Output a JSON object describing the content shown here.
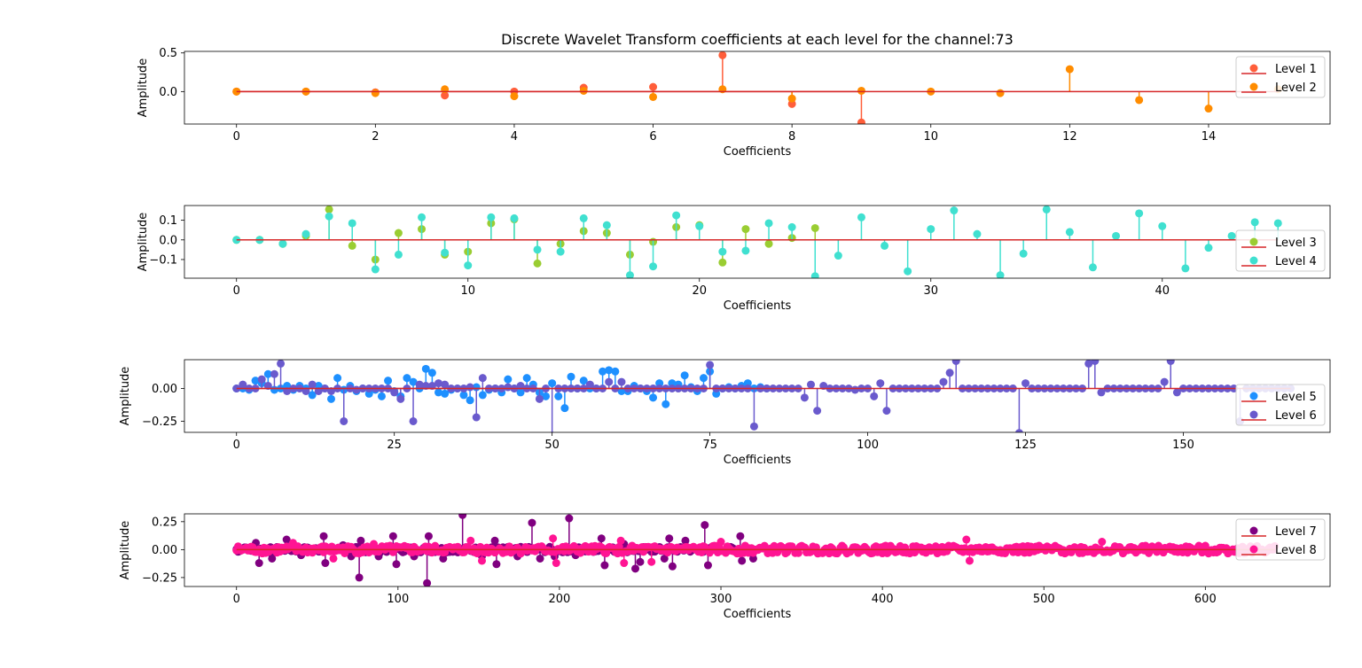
{
  "figure_title": "Discrete Wavelet Transform coefficients at each level for the channel:73",
  "colors": {
    "baseline": "#d62728",
    "level1": "#ff5e3a",
    "level2": "#ff8c00",
    "level3": "#9acd32",
    "level4": "#40e0d0",
    "level5": "#1e90ff",
    "level6": "#6a5acd",
    "level7": "#800080",
    "level8": "#ff1493"
  },
  "chart_data": [
    {
      "type": "stem",
      "xlabel": "Coefficients",
      "ylabel": "Amplitude",
      "xlim": [
        -0.75,
        15.75
      ],
      "ylim": [
        -0.42,
        0.52
      ],
      "xticks": [
        0,
        2,
        4,
        6,
        8,
        10,
        12,
        14
      ],
      "yticks": [
        0.0,
        0.5
      ],
      "ytick_labels": [
        "0.0",
        "0.5"
      ],
      "legend_position": "top-right",
      "series": [
        {
          "name": "Level 1",
          "color_key": "level1",
          "values": [
            0.0,
            0.0,
            -0.01,
            -0.05,
            0.0,
            0.05,
            0.06,
            0.47,
            -0.16,
            -0.4
          ]
        },
        {
          "name": "Level 2",
          "color_key": "level2",
          "values": [
            0.0,
            0.0,
            -0.02,
            0.03,
            -0.06,
            0.01,
            -0.07,
            0.03,
            -0.09,
            0.01,
            0.0,
            -0.02,
            0.29,
            -0.11,
            -0.22,
            0.03
          ]
        }
      ]
    },
    {
      "type": "stem",
      "xlabel": "Coefficients",
      "ylabel": "Amplitude",
      "xlim": [
        -2.25,
        47.25
      ],
      "ylim": [
        -0.195,
        0.175
      ],
      "xticks": [
        0,
        10,
        20,
        30,
        40
      ],
      "yticks": [
        -0.1,
        0.0,
        0.1
      ],
      "ytick_labels": [
        "−0.1",
        "0.0",
        "0.1"
      ],
      "legend_position": "right",
      "series": [
        {
          "name": "Level 3",
          "color_key": "level3",
          "values": [
            0.0,
            0.0,
            -0.02,
            0.02,
            0.155,
            -0.03,
            -0.1,
            0.035,
            0.055,
            -0.075,
            -0.06,
            0.085,
            0.105,
            -0.12,
            -0.02,
            0.045,
            0.035,
            -0.075,
            -0.01,
            0.065,
            0.075,
            -0.115,
            0.055,
            -0.02,
            0.01,
            0.06
          ]
        },
        {
          "name": "Level 4",
          "color_key": "level4",
          "values": [
            0.0,
            0.0,
            -0.02,
            0.03,
            0.12,
            0.085,
            -0.15,
            -0.075,
            0.115,
            -0.065,
            -0.13,
            0.115,
            0.11,
            -0.05,
            -0.06,
            0.11,
            0.075,
            -0.18,
            -0.135,
            0.125,
            0.07,
            -0.06,
            -0.055,
            0.085,
            0.065,
            -0.185,
            -0.08,
            0.115,
            -0.03,
            -0.16,
            0.055,
            0.15,
            0.03,
            -0.18,
            -0.07,
            0.155,
            0.04,
            -0.14,
            0.02,
            0.135,
            0.07,
            -0.145,
            -0.04,
            0.02,
            0.09,
            0.085
          ]
        }
      ]
    },
    {
      "type": "stem",
      "xlabel": "Coefficients",
      "ylabel": "Amplitude",
      "xlim": [
        -8.25,
        173.25
      ],
      "ylim": [
        -0.335,
        0.22
      ],
      "xticks": [
        0,
        25,
        50,
        75,
        100,
        125,
        150
      ],
      "yticks": [
        -0.25,
        0.0
      ],
      "ytick_labels": [
        "−0.25",
        "0.00"
      ],
      "legend_position": "right",
      "series": [
        {
          "name": "Level 5",
          "color_key": "level5",
          "values": [
            0.0,
            0.0,
            -0.01,
            0.06,
            0.04,
            0.11,
            -0.01,
            0.0,
            0.02,
            -0.01,
            0.02,
            0.0,
            -0.05,
            0.02,
            0.0,
            -0.08,
            0.08,
            -0.01,
            0.02,
            -0.02,
            0.0,
            -0.04,
            -0.01,
            -0.06,
            0.06,
            -0.02,
            -0.06,
            0.08,
            0.05,
            0.0,
            0.15,
            0.12,
            -0.03,
            -0.04,
            -0.01,
            0.0,
            -0.05,
            -0.09,
            0.01,
            -0.05,
            -0.01,
            0.0,
            -0.03,
            0.07,
            0.0,
            -0.03,
            0.08,
            0.03,
            -0.03,
            -0.06,
            0.04,
            -0.06,
            -0.15,
            0.09,
            0.0,
            0.06,
            0.0,
            0.0,
            0.13,
            0.14,
            0.13,
            -0.02,
            -0.02,
            0.02,
            0.0,
            -0.02,
            -0.07,
            0.04,
            -0.12,
            0.04,
            0.03,
            0.1,
            0.01,
            -0.02,
            0.08,
            0.13,
            -0.04,
            0.0,
            0.01,
            0.0,
            0.02,
            0.04,
            0.0,
            0.01,
            0.0
          ]
        },
        {
          "name": "Level 6",
          "color_key": "level6",
          "values": [
            0.0,
            0.03,
            0.0,
            0.0,
            0.07,
            0.02,
            0.11,
            0.19,
            -0.02,
            0.0,
            0.0,
            -0.02,
            0.03,
            -0.02,
            0.0,
            -0.02,
            0.0,
            -0.25,
            0.0,
            -0.01,
            0.0,
            0.0,
            0.0,
            0.0,
            0.0,
            -0.03,
            -0.08,
            0.0,
            -0.25,
            0.03,
            0.02,
            0.02,
            0.04,
            0.03,
            0.0,
            0.0,
            0.0,
            0.01,
            -0.22,
            0.08,
            0.0,
            0.0,
            0.0,
            0.01,
            0.0,
            0.02,
            0.0,
            0.0,
            -0.08,
            0.0,
            -0.36,
            0.0,
            0.0,
            0.0,
            0.0,
            0.0,
            0.03,
            0.0,
            0.0,
            0.05,
            0.0,
            0.05,
            0.0,
            0.0,
            0.0,
            0.0,
            0.0,
            0.0,
            0.0,
            0.0,
            0.0,
            0.0,
            0.0,
            0.0,
            0.0,
            0.18,
            0.0,
            0.0,
            0.0,
            0.0,
            0.0,
            0.0,
            -0.29,
            0.0,
            0.0,
            0.0,
            0.0,
            0.0,
            0.0,
            0.0,
            -0.07,
            0.03,
            -0.17,
            0.02,
            0.0,
            0.0,
            0.0,
            0.0,
            -0.01,
            0.0,
            0.0,
            -0.06,
            0.04,
            -0.17,
            0.0,
            0.0,
            0.0,
            0.0,
            0.0,
            0.0,
            0.0,
            0.0,
            0.05,
            0.12,
            0.21,
            0.0,
            0.0,
            0.0,
            0.0,
            0.0,
            0.0,
            0.0,
            0.0,
            0.0,
            -0.34,
            0.04,
            0.0,
            0.0,
            0.0,
            0.0,
            0.0,
            0.0,
            0.0,
            0.0,
            0.0,
            0.19,
            0.21,
            -0.03,
            0.0,
            0.0,
            0.0,
            0.0,
            0.0,
            0.0,
            0.0,
            0.0,
            0.0,
            0.05,
            0.21,
            -0.03,
            0.0,
            0.0,
            0.0,
            0.0,
            0.0,
            0.0,
            0.0,
            0.0,
            0.0,
            -0.25,
            0.0,
            0.0,
            0.0,
            0.0,
            0.0,
            0.0,
            0.0,
            0.0
          ]
        }
      ]
    },
    {
      "type": "stem",
      "xlabel": "Coefficients",
      "ylabel": "Amplitude",
      "xlim": [
        -32.25,
        677.25
      ],
      "ylim": [
        -0.33,
        0.32
      ],
      "xticks": [
        0,
        100,
        200,
        300,
        400,
        500,
        600
      ],
      "yticks": [
        -0.25,
        0.0,
        0.25
      ],
      "ytick_labels": [
        "−0.25",
        "0.00",
        "0.25"
      ],
      "legend_position": "top-right",
      "series": [
        {
          "name": "Level 7",
          "color_key": "level7",
          "n": 322,
          "noise": 0.025,
          "seed": 7,
          "spikes": [
            [
              5,
              0.02
            ],
            [
              12,
              0.06
            ],
            [
              14,
              -0.12
            ],
            [
              22,
              -0.08
            ],
            [
              31,
              0.09
            ],
            [
              40,
              -0.05
            ],
            [
              54,
              0.12
            ],
            [
              55,
              -0.12
            ],
            [
              66,
              0.04
            ],
            [
              71,
              -0.06
            ],
            [
              76,
              -0.25
            ],
            [
              77,
              0.08
            ],
            [
              88,
              -0.06
            ],
            [
              97,
              0.12
            ],
            [
              99,
              -0.13
            ],
            [
              110,
              -0.06
            ],
            [
              118,
              -0.3
            ],
            [
              119,
              0.12
            ],
            [
              128,
              -0.08
            ],
            [
              140,
              0.31
            ],
            [
              152,
              -0.06
            ],
            [
              160,
              0.08
            ],
            [
              161,
              -0.13
            ],
            [
              174,
              -0.06
            ],
            [
              183,
              0.24
            ],
            [
              188,
              -0.08
            ],
            [
              197,
              -0.06
            ],
            [
              206,
              0.28
            ],
            [
              210,
              -0.05
            ],
            [
              226,
              0.1
            ],
            [
              228,
              -0.14
            ],
            [
              240,
              0.05
            ],
            [
              247,
              -0.17
            ],
            [
              250,
              -0.11
            ],
            [
              265,
              -0.08
            ],
            [
              268,
              0.1
            ],
            [
              270,
              -0.15
            ],
            [
              278,
              0.08
            ],
            [
              290,
              0.22
            ],
            [
              292,
              -0.14
            ],
            [
              312,
              0.12
            ],
            [
              313,
              -0.1
            ],
            [
              320,
              -0.08
            ]
          ]
        },
        {
          "name": "Level 8",
          "color_key": "level8",
          "n": 644,
          "noise": 0.035,
          "seed": 8,
          "spikes": [
            [
              35,
              0.06
            ],
            [
              60,
              -0.08
            ],
            [
              85,
              0.05
            ],
            [
              145,
              0.08
            ],
            [
              152,
              -0.1
            ],
            [
              196,
              0.1
            ],
            [
              198,
              -0.12
            ],
            [
              238,
              0.08
            ],
            [
              240,
              -0.12
            ],
            [
              257,
              -0.11
            ],
            [
              300,
              0.07
            ],
            [
              452,
              0.09
            ],
            [
              454,
              -0.1
            ],
            [
              536,
              0.07
            ]
          ]
        }
      ]
    }
  ],
  "legend_labels": [
    [
      "Level 1",
      "Level 2"
    ],
    [
      "Level 3",
      "Level 4"
    ],
    [
      "Level 5",
      "Level 6"
    ],
    [
      "Level 7",
      "Level 8"
    ]
  ]
}
